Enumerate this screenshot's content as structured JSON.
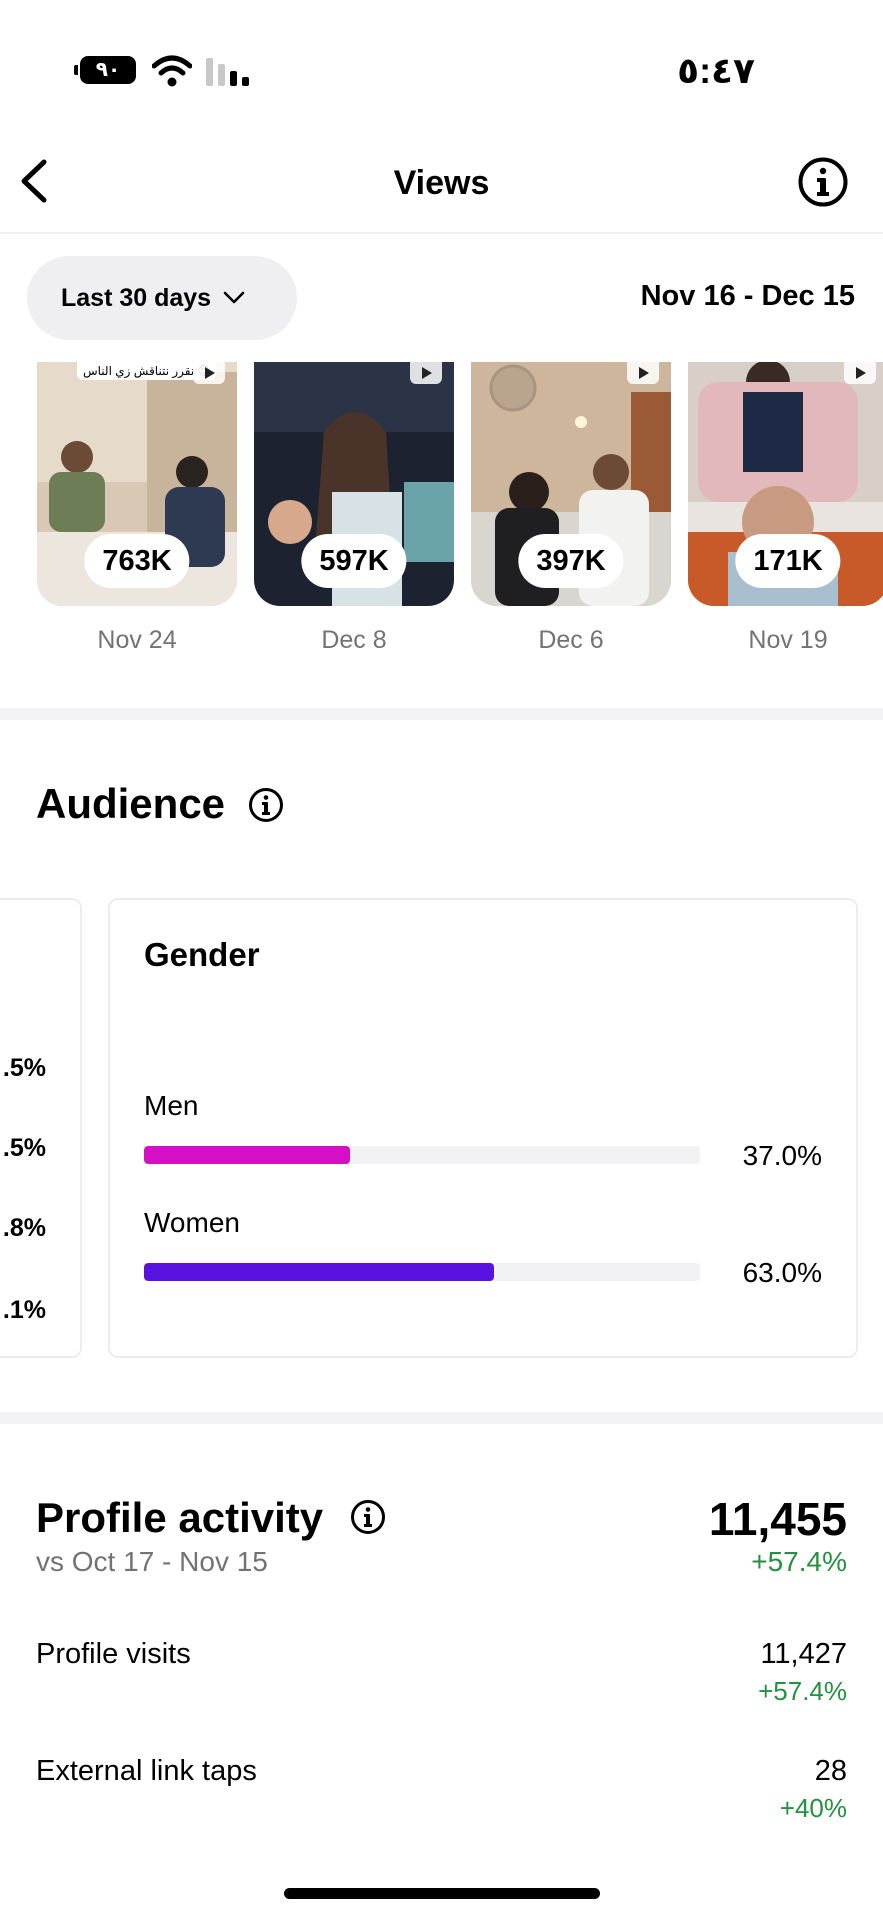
{
  "status_bar": {
    "time": "٥:٤٧",
    "battery": "٩٠"
  },
  "header": {
    "title": "Views"
  },
  "filter": {
    "range_label": "Last 30 days",
    "date_range": "Nov 16 - Dec 15"
  },
  "reels": [
    {
      "views": "763K",
      "date": "Nov 24",
      "caption": "نقرر نتناقش زي الناس 😉"
    },
    {
      "views": "597K",
      "date": "Dec 8"
    },
    {
      "views": "397K",
      "date": "Dec 6"
    },
    {
      "views": "171K",
      "date": "Nov 19"
    }
  ],
  "audience": {
    "title": "Audience",
    "partial_card_values": [
      ".5%",
      ".5%",
      ".8%",
      ".1%"
    ],
    "gender": {
      "title": "Gender",
      "items": [
        {
          "label": "Men",
          "percent": "37.0%",
          "fraction": 0.37,
          "color": "#d40fc5"
        },
        {
          "label": "Women",
          "percent": "63.0%",
          "fraction": 0.63,
          "color": "#5a12e0"
        }
      ]
    }
  },
  "profile_activity": {
    "title": "Profile activity",
    "comparison": "vs Oct 17 - Nov 15",
    "total": "11,455",
    "total_change": "+57.4%",
    "rows": [
      {
        "label": "Profile visits",
        "value": "11,427",
        "change": "+57.4%"
      },
      {
        "label": "External link taps",
        "value": "28",
        "change": "+40%"
      }
    ]
  }
}
